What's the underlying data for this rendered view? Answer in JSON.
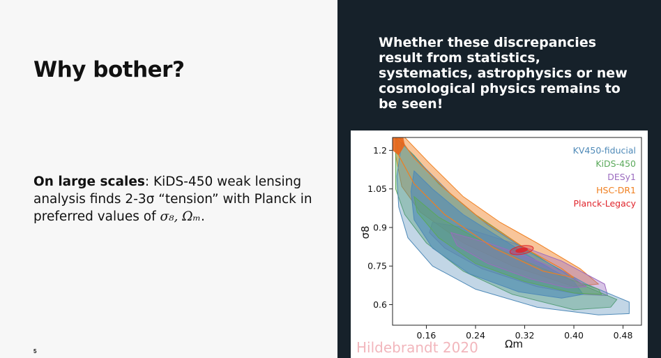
{
  "slide": {
    "title": "Why bother?",
    "body_bold": "On large scales",
    "body_text": ": KiDS-450 weak lensing analysis finds 2-3σ “tension” with Planck in preferred values of ",
    "body_math": "σ₈, Ωₘ",
    "body_end": ".",
    "page_number": "5",
    "right_text": "Whether these discrepancies result from statistics, systematics, astrophysics or new cosmological physics remains to be seen!",
    "watermark": "Hildebrandt 2020"
  },
  "chart_data": {
    "type": "contour",
    "xlabel": "Ωm",
    "ylabel": "σ8",
    "xlim": [
      0.105,
      0.51
    ],
    "ylim": [
      0.52,
      1.25
    ],
    "xticks": [
      "0.16",
      "0.24",
      "0.32",
      "0.40",
      "0.48"
    ],
    "yticks": [
      "0.6",
      "0.75",
      "0.9",
      "1.05",
      "1.2"
    ],
    "legend_placement": "top-right",
    "series": [
      {
        "name": "KV450-fiducial",
        "color": "#4f8ab8"
      },
      {
        "name": "KiDS-450",
        "color": "#5aa95a"
      },
      {
        "name": "DESy1",
        "color": "#9b6bbf"
      },
      {
        "name": "HSC-DR1",
        "color": "#f07f1f"
      },
      {
        "name": "Planck-Legacy",
        "color": "#e0242b"
      }
    ]
  }
}
